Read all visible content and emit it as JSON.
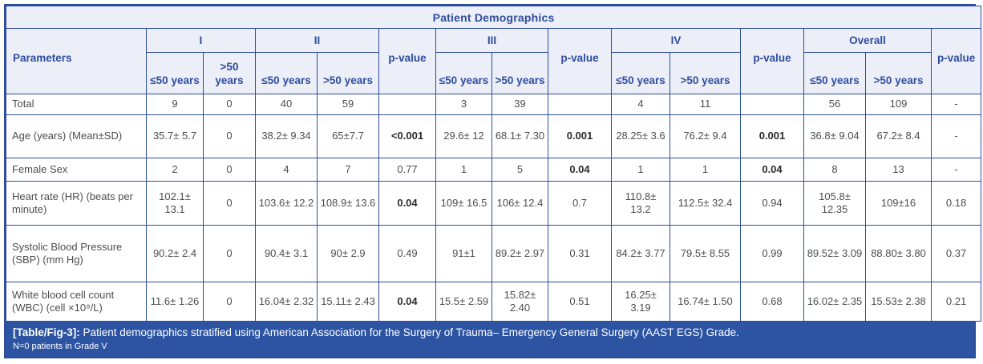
{
  "title": "Patient Demographics",
  "colors": {
    "border": "#2e4d9b",
    "header_bg": "#eceff7",
    "header_text": "#2f4d9f",
    "body_text": "#4d4d4d",
    "caption_bg": "#2c54a3",
    "caption_text": "#ffffff"
  },
  "table": {
    "params_header": "Parameters",
    "pvalue_header": "p-value",
    "groups": [
      {
        "label": "I",
        "cols": [
          "≤50 years",
          ">50 years"
        ]
      },
      {
        "label": "II",
        "cols": [
          "≤50 years",
          ">50 years"
        ]
      },
      {
        "label": "III",
        "cols": [
          "≤50 years",
          ">50 years"
        ]
      },
      {
        "label": "IV",
        "cols": [
          "≤50 years",
          ">50 years"
        ]
      },
      {
        "label": "Overall",
        "cols": [
          "≤50 years",
          ">50 years"
        ]
      }
    ],
    "rows": [
      {
        "label": "Total",
        "cells": [
          "9",
          "0",
          "40",
          "59",
          "",
          "3",
          "39",
          "",
          "4",
          "11",
          "",
          "56",
          "109",
          "-"
        ],
        "bold": []
      },
      {
        "label": "Age (years) (Mean±SD)",
        "cells": [
          "35.7± 5.7",
          "0",
          "38.2± 9.34",
          "65±7.7",
          "<0.001",
          "29.6± 12",
          "68.1± 7.30",
          "0.001",
          "28.25± 3.6",
          "76.2± 9.4",
          "0.001",
          "36.8± 9.04",
          "67.2± 8.4",
          "-"
        ],
        "bold": [
          4,
          7,
          10
        ]
      },
      {
        "label": "Female Sex",
        "cells": [
          "2",
          "0",
          "4",
          "7",
          "0.77",
          "1",
          "5",
          "0.04",
          "1",
          "1",
          "0.04",
          "8",
          "13",
          "-"
        ],
        "bold": [
          7,
          10
        ]
      },
      {
        "label": "Heart rate (HR) (beats per minute)",
        "cells": [
          "102.1± 13.1",
          "0",
          "103.6± 12.2",
          "108.9± 13.6",
          "0.04",
          "109± 16.5",
          "106± 12.4",
          "0.7",
          "110.8± 13.2",
          "112.5± 32.4",
          "0.94",
          "105.8± 12.35",
          "109±16",
          "0.18"
        ],
        "bold": [
          4
        ]
      },
      {
        "label": "Systolic Blood Pressure (SBP) (mm Hg)",
        "cells": [
          "90.2± 2.4",
          "0",
          "90.4± 3.1",
          "90± 2.9",
          "0.49",
          "91±1",
          "89.2± 2.97",
          "0.31",
          "84.2± 3.77",
          "79.5± 8.55",
          "0.99",
          "89.52± 3.09",
          "88.80± 3.80",
          "0.37"
        ],
        "bold": []
      },
      {
        "label": "White blood cell count (WBC) (cell ×10⁹/L)",
        "cells": [
          "11.6± 1.26",
          "0",
          "16.04± 2.32",
          "15.11± 2.43",
          "0.04",
          "15.5± 2.59",
          "15.82± 2.40",
          "0.51",
          "16.25± 3.19",
          "16.74± 1.50",
          "0.68",
          "16.02± 2.35",
          "15.53± 2.38",
          "0.21"
        ],
        "bold": [
          4
        ]
      }
    ]
  },
  "caption": {
    "tag": "[Table/Fig-3]:",
    "text": "Patient demographics stratified using American Association for the Surgery of Trauma– Emergency General Surgery (AAST EGS) Grade.",
    "note": "N=0 patients in Grade V"
  }
}
